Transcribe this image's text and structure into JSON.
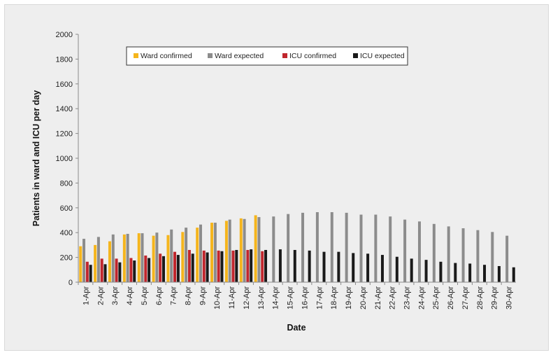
{
  "chart_data": {
    "type": "bar",
    "title": "",
    "xlabel": "Date",
    "ylabel": "Patients in ward and ICU per day",
    "ylim": [
      0,
      2000
    ],
    "yticks": [
      0,
      200,
      400,
      600,
      800,
      1000,
      1200,
      1400,
      1600,
      1800,
      2000
    ],
    "grid": false,
    "legend_position": "top-left",
    "categories": [
      "1-Apr",
      "2-Apr",
      "3-Apr",
      "4-Apr",
      "5-Apr",
      "6-Apr",
      "7-Apr",
      "8-Apr",
      "9-Apr",
      "10-Apr",
      "11-Apr",
      "12-Apr",
      "13-Apr",
      "14-Apr",
      "15-Apr",
      "16-Apr",
      "17-Apr",
      "18-Apr",
      "19-Apr",
      "20-Apr",
      "21-Apr",
      "22-Apr",
      "23-Apr",
      "24-Apr",
      "25-Apr",
      "26-Apr",
      "27-Apr",
      "28-Apr",
      "29-Apr",
      "30-Apr"
    ],
    "series": [
      {
        "name": "Ward confirmed",
        "color": "#f5b51c",
        "values": [
          290,
          300,
          330,
          385,
          395,
          375,
          380,
          405,
          440,
          480,
          495,
          515,
          540,
          null,
          null,
          null,
          null,
          null,
          null,
          null,
          null,
          null,
          null,
          null,
          null,
          null,
          null,
          null,
          null,
          null
        ]
      },
      {
        "name": "Ward expected",
        "color": "#8c8c8c",
        "values": [
          350,
          365,
          385,
          390,
          395,
          400,
          425,
          440,
          465,
          480,
          505,
          510,
          525,
          530,
          550,
          560,
          565,
          565,
          560,
          545,
          545,
          530,
          505,
          490,
          470,
          450,
          435,
          420,
          405,
          375
        ]
      },
      {
        "name": "ICU confirmed",
        "color": "#c0262d",
        "values": [
          165,
          190,
          190,
          195,
          215,
          230,
          245,
          260,
          255,
          255,
          255,
          260,
          250,
          null,
          null,
          null,
          null,
          null,
          null,
          null,
          null,
          null,
          null,
          null,
          null,
          null,
          null,
          null,
          null,
          null
        ]
      },
      {
        "name": "ICU expected",
        "color": "#1a1a1a",
        "values": [
          140,
          145,
          160,
          175,
          195,
          210,
          220,
          230,
          240,
          250,
          260,
          265,
          260,
          265,
          260,
          255,
          245,
          245,
          235,
          230,
          220,
          205,
          190,
          180,
          165,
          155,
          150,
          140,
          130,
          120
        ]
      }
    ]
  }
}
